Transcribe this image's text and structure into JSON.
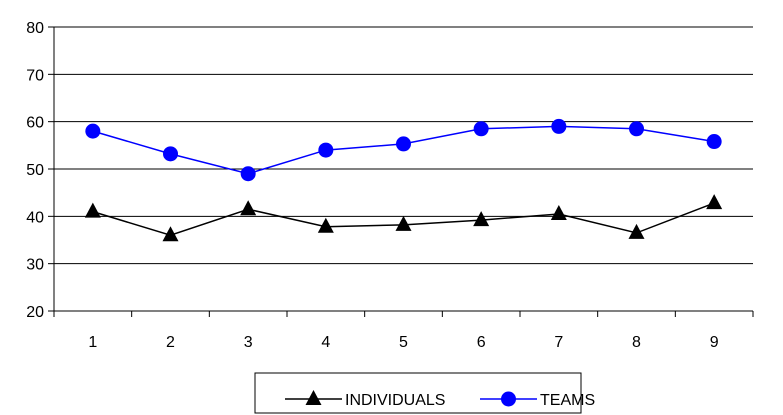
{
  "chart_data": {
    "type": "line",
    "title": "",
    "xlabel": "",
    "ylabel": "",
    "categories": [
      "1",
      "2",
      "3",
      "4",
      "5",
      "6",
      "7",
      "8",
      "9"
    ],
    "ylim": [
      20,
      80
    ],
    "yticks": [
      "20",
      "30",
      "40",
      "50",
      "60",
      "70",
      "80"
    ],
    "grid": "horizontal",
    "legend_position": "bottom",
    "series": [
      {
        "name": "INDIVIDUALS",
        "values": [
          41,
          36,
          41.5,
          37.8,
          38.2,
          39.2,
          40.5,
          36.5,
          42.8
        ],
        "color": "#000000",
        "marker": "triangle"
      },
      {
        "name": "TEAMS",
        "values": [
          58,
          53.2,
          49,
          54,
          55.3,
          58.5,
          59,
          58.5,
          55.8
        ],
        "color": "#0000ff",
        "marker": "circle"
      }
    ]
  }
}
